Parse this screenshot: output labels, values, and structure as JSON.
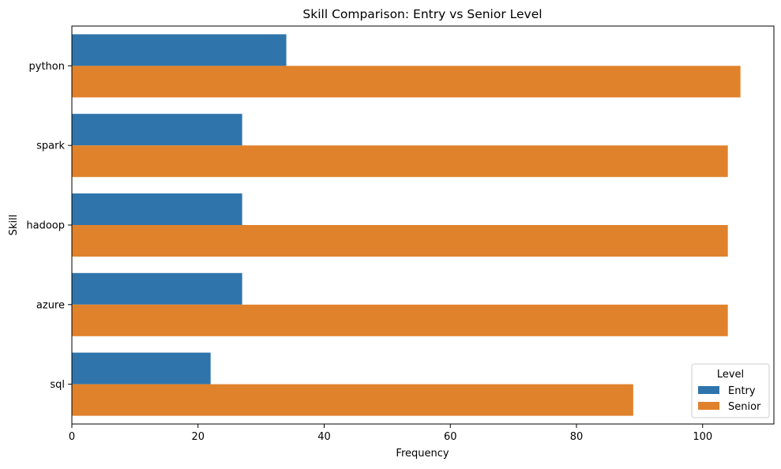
{
  "chart_data": {
    "type": "bar",
    "orientation": "horizontal",
    "title": "Skill Comparison: Entry vs Senior Level",
    "xlabel": "Frequency",
    "ylabel": "Skill",
    "categories": [
      "python",
      "spark",
      "hadoop",
      "azure",
      "sql"
    ],
    "series": [
      {
        "name": "Entry",
        "color": "#2f75ac",
        "values": [
          34,
          27,
          27,
          27,
          22
        ]
      },
      {
        "name": "Senior",
        "color": "#e0822b",
        "values": [
          106,
          104,
          104,
          104,
          89
        ]
      }
    ],
    "xlim": [
      0,
      111.3
    ],
    "xticks": [
      0,
      20,
      40,
      60,
      80,
      100
    ],
    "grid": false,
    "legend": {
      "title": "Level",
      "position": "lower-right"
    }
  }
}
